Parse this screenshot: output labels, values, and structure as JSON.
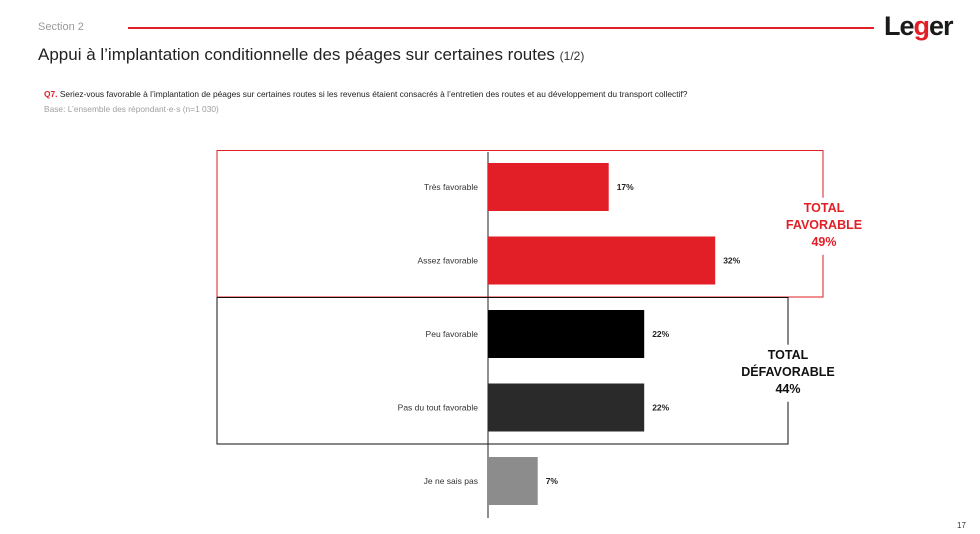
{
  "header": {
    "section": "Section 2",
    "logo": {
      "text_prefix": "Le",
      "text_g": "g",
      "text_suffix": "er"
    },
    "accent_color": "#e21e26"
  },
  "title": {
    "main": "Appui à l’implantation conditionnelle des péages sur certaines routes",
    "part": "(1/2)"
  },
  "question": {
    "id": "Q7.",
    "text": "Seriez-vous favorable à l’implantation de péages sur certaines routes si les revenus étaient consacrés à l’entretien des routes et au développement du transport collectif?",
    "base": "Base: L’ensemble des répondant·e·s (n=1 030)"
  },
  "chart_data": {
    "type": "bar",
    "orientation": "horizontal",
    "categories": [
      "Très favorable",
      "Assez favorable",
      "Peu favorable",
      "Pas du tout favorable",
      "Je ne sais pas"
    ],
    "values": [
      17,
      32,
      22,
      22,
      7
    ],
    "value_labels": [
      "17%",
      "32%",
      "22%",
      "22%",
      "7%"
    ],
    "colors": [
      "#e21e26",
      "#e21e26",
      "#000000",
      "#2a2a2a",
      "#8c8c8c"
    ],
    "xlim": [
      0,
      40
    ],
    "groups": [
      {
        "label_lines": [
          "TOTAL",
          "FAVORABLE",
          "49%"
        ],
        "value": 49,
        "color": "#e21e26",
        "categories": [
          0,
          1
        ]
      },
      {
        "label_lines": [
          "TOTAL",
          "DÉFAVORABLE",
          "44%"
        ],
        "value": 44,
        "color": "#111111",
        "categories": [
          2,
          3
        ]
      }
    ]
  },
  "page_number": "17"
}
